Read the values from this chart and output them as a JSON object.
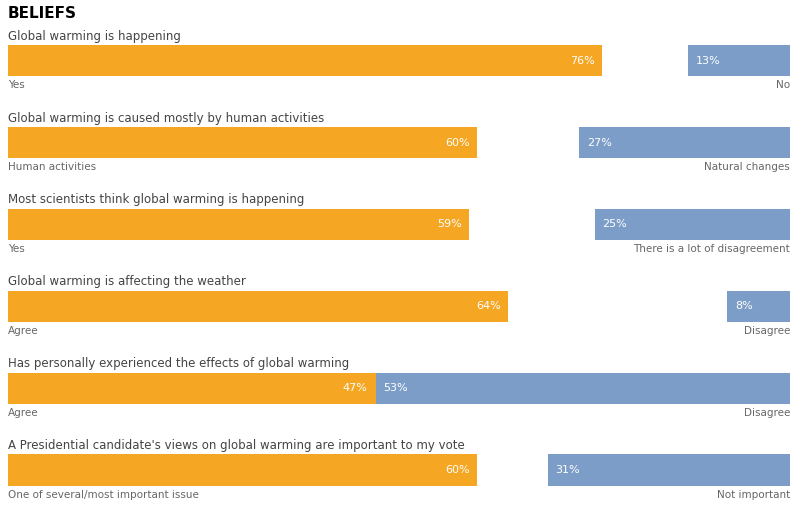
{
  "title": "BELIEFS",
  "bars": [
    {
      "question": "Global warming is happening",
      "orange_pct": 76,
      "blue_pct": 13,
      "left_label": "Yes",
      "right_label": "No"
    },
    {
      "question": "Global warming is caused mostly by human activities",
      "orange_pct": 60,
      "blue_pct": 27,
      "left_label": "Human activities",
      "right_label": "Natural changes"
    },
    {
      "question": "Most scientists think global warming is happening",
      "orange_pct": 59,
      "blue_pct": 25,
      "left_label": "Yes",
      "right_label": "There is a lot of disagreement"
    },
    {
      "question": "Global warming is affecting the weather",
      "orange_pct": 64,
      "blue_pct": 8,
      "left_label": "Agree",
      "right_label": "Disagree"
    },
    {
      "question": "Has personally experienced the effects of global warming",
      "orange_pct": 47,
      "blue_pct": 53,
      "left_label": "Agree",
      "right_label": "Disagree"
    },
    {
      "question": "A Presidential candidate's views on global warming are important to my vote",
      "orange_pct": 60,
      "blue_pct": 31,
      "left_label": "One of several/most important issue",
      "right_label": "Not important"
    }
  ],
  "orange_color": "#F5A623",
  "blue_color": "#7B9DC8",
  "background_color": "#FFFFFF",
  "bar_height": 0.38,
  "title_fontsize": 11,
  "question_fontsize": 8.5,
  "label_fontsize": 7.5,
  "pct_fontsize": 8
}
